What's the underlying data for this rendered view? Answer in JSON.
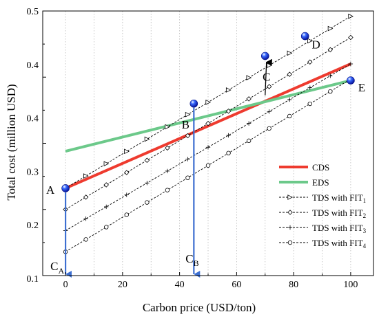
{
  "chart_data": {
    "type": "line",
    "title": "",
    "xlabel": "Carbon price  (USD/ton)",
    "ylabel": "Total cost (million USD)",
    "xlim": [
      -8,
      108
    ],
    "ylim": [
      0.1,
      0.5
    ],
    "x_ticks": [
      0,
      20,
      40,
      60,
      80,
      100
    ],
    "y_ticks": [
      0.1,
      0.2,
      0.3,
      0.4,
      0.5
    ],
    "x_tick_labels": [
      "0",
      "20",
      "40",
      "60",
      "80",
      "100"
    ],
    "y_tick_labels": [
      "0.1",
      "0.2",
      "0.3",
      "0.4",
      "0.5"
    ],
    "y_tick_labels_top_left": [
      "0.5",
      "0.4",
      "0.4",
      "0.3",
      "0.2",
      "0.1"
    ],
    "grid": "vertical dotted",
    "legend_position": "lower-right",
    "series": [
      {
        "name": "CDS",
        "color": "#ee3b2f",
        "style": "thick-solid",
        "x": [
          0,
          100
        ],
        "y": [
          0.232,
          0.42
        ]
      },
      {
        "name": "EDS",
        "color": "#6cc98a",
        "style": "thick-solid",
        "x": [
          0,
          100
        ],
        "y": [
          0.288,
          0.395
        ]
      },
      {
        "name": "TDS with FIT",
        "sub": "1",
        "color": "#000000",
        "style": "dashed",
        "marker": "triangle-right",
        "x": [
          0,
          100
        ],
        "y": [
          0.232,
          0.492
        ]
      },
      {
        "name": "TDS with FIT",
        "sub": "2",
        "color": "#000000",
        "style": "dashed",
        "marker": "diamond",
        "x": [
          0,
          100
        ],
        "y": [
          0.2,
          0.46
        ]
      },
      {
        "name": "TDS with FIT",
        "sub": "3",
        "color": "#000000",
        "style": "dashed",
        "marker": "plus",
        "x": [
          0,
          100
        ],
        "y": [
          0.168,
          0.42
        ]
      },
      {
        "name": "TDS with FIT",
        "sub": "4",
        "color": "#000000",
        "style": "dashed",
        "marker": "circle",
        "x": [
          0,
          100
        ],
        "y": [
          0.136,
          0.397
        ]
      }
    ],
    "points": [
      {
        "label": "A",
        "x": 0,
        "y": 0.232
      },
      {
        "label": "B",
        "x": 45,
        "y": 0.36
      },
      {
        "label": "C",
        "x": 70,
        "y": 0.432
      },
      {
        "label": "D",
        "x": 84,
        "y": 0.462
      },
      {
        "label": "E",
        "x": 100,
        "y": 0.395
      }
    ],
    "annotations": [
      {
        "label": "C",
        "sub": "A",
        "x": 0,
        "arrow_from_y": 0.232,
        "arrow_to_y": 0.1
      },
      {
        "label": "C",
        "sub": "B",
        "x": 45,
        "arrow_from_y": 0.36,
        "arrow_to_y": 0.1
      },
      {
        "label": "C",
        "sub": "",
        "x": 70,
        "arrow_from_y": 0.385,
        "arrow_to_y": 0.432,
        "style": "black-arrow"
      }
    ]
  }
}
